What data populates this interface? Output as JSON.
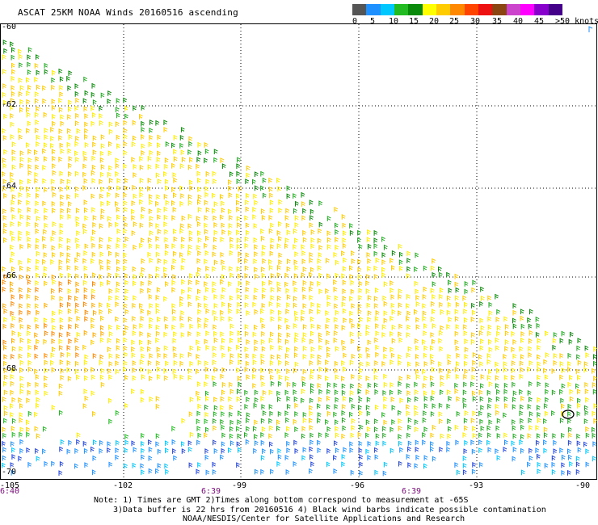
{
  "title": "ASCAT 25KM NOAA Winds 20160516 ascending",
  "scale": {
    "swatch_colors": [
      "#555555",
      "#1e90ff",
      "#00c8ff",
      "#22bb22",
      "#0a8a0a",
      "#ffff00",
      "#ffcc00",
      "#ff8800",
      "#ff4400",
      "#ee1111",
      "#8b4513",
      "#cc44cc",
      "#ff00ff",
      "#8800cc",
      "#440088"
    ],
    "labels": [
      "0",
      "5",
      "10",
      "15",
      "20",
      "25",
      "30",
      "35",
      "40",
      "45",
      ">50 knots"
    ]
  },
  "lat_labels": [
    "-60",
    "-62",
    "-64",
    "-66",
    "-68",
    "-70"
  ],
  "lon_labels": [
    "-105",
    "-102",
    "-99",
    "-96",
    "-93",
    "-90"
  ],
  "time_labels": [
    "6:40",
    "6:39",
    "6:39"
  ],
  "notes": {
    "line1": "Note: 1) Times are GMT 2)Times along bottom correspond to measurement at -65S",
    "line2": "3)Data buffer is 22 hrs from 20160516 4) Black wind barbs indicate possible contamination",
    "line3": "NOAA/NESDIS/Center for Satellite Applications and Research"
  }
}
